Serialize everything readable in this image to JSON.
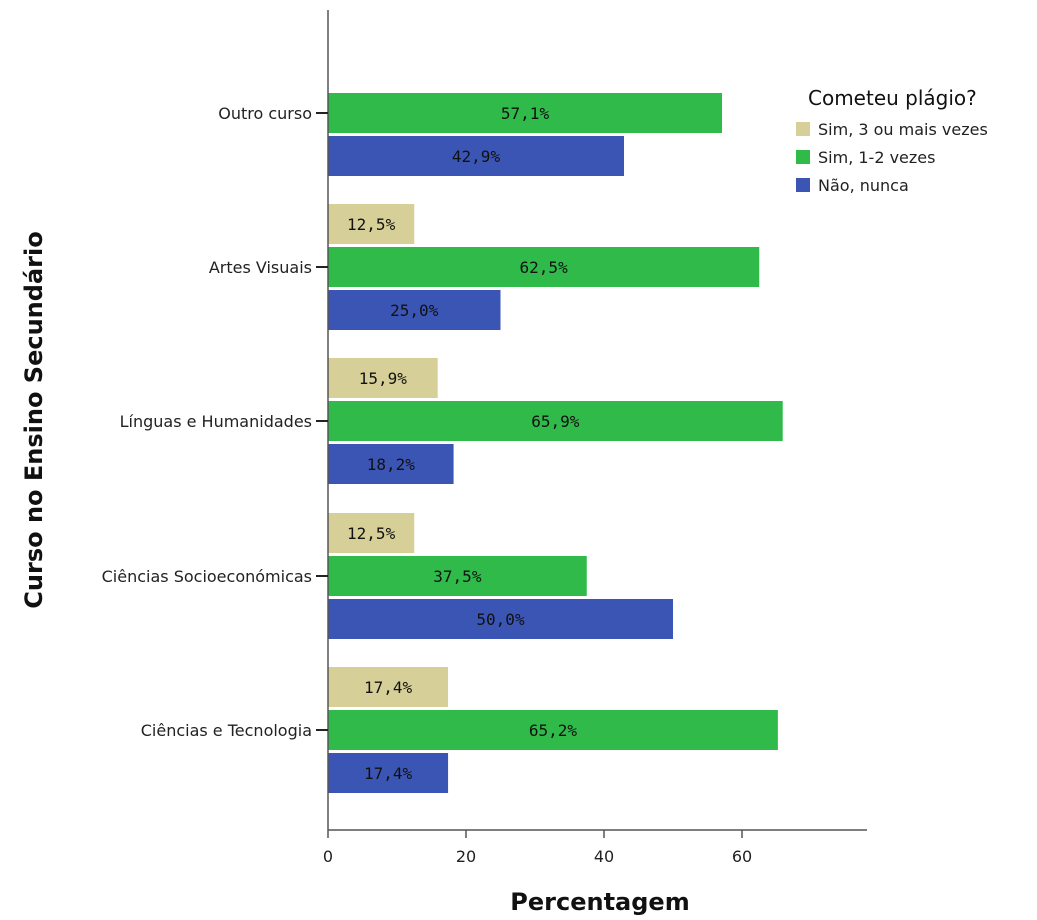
{
  "chart_data": {
    "type": "bar",
    "orientation": "horizontal",
    "xlabel": "Percentagem",
    "ylabel": "Curso no Ensino Secundário",
    "xlim": [
      0,
      78
    ],
    "xticks": [
      0,
      20,
      40,
      60
    ],
    "legend": {
      "title": "Cometeu plágio?",
      "position": "top-right"
    },
    "categories": [
      "Outro curso",
      "Artes Visuais",
      "Línguas e Humanidades",
      "Ciências Socioeconómicas",
      "Ciências e Tecnologia"
    ],
    "series": [
      {
        "name": "Sim, 3 ou mais vezes",
        "color": "#d6cf97",
        "values": [
          null,
          12.5,
          15.9,
          12.5,
          17.4
        ],
        "labels": [
          "",
          "12,5%",
          "15,9%",
          "12,5%",
          "17,4%"
        ]
      },
      {
        "name": "Sim, 1-2 vezes",
        "color": "#2fba4a",
        "values": [
          57.1,
          62.5,
          65.9,
          37.5,
          65.2
        ],
        "labels": [
          "57,1%",
          "62,5%",
          "65,9%",
          "37,5%",
          "65,2%"
        ]
      },
      {
        "name": "Não, nunca",
        "color": "#3b55b5",
        "values": [
          42.9,
          25.0,
          18.2,
          50.0,
          17.4
        ],
        "labels": [
          "42,9%",
          "25,0%",
          "18,2%",
          "50,0%",
          "17,4%"
        ]
      }
    ]
  }
}
